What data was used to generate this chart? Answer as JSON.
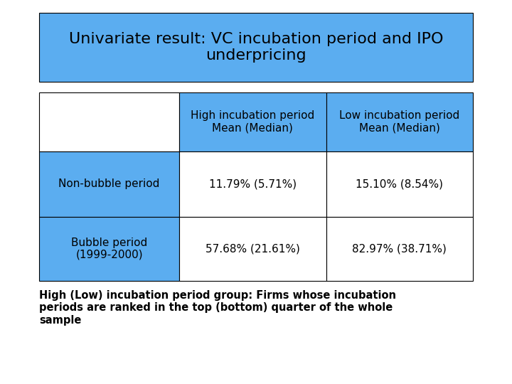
{
  "title": "Univariate result: VC incubation period and IPO\nunderpricing",
  "title_bg_color": "#5badf0",
  "title_fontsize": 16,
  "title_text_color": "#000000",
  "col_headers": [
    "High incubation period\nMean (Median)",
    "Low incubation period\nMean (Median)"
  ],
  "col_header_bg": "#5badf0",
  "row_headers": [
    "Non-bubble period",
    "Bubble period\n(1999-2000)"
  ],
  "row_header_bg": "#5badf0",
  "data": [
    [
      "11.79% (5.71%)",
      "15.10% (8.54%)"
    ],
    [
      "57.68% (21.61%)",
      "82.97% (38.71%)"
    ]
  ],
  "data_bg": "#ffffff",
  "border_color": "#000000",
  "footnote": "High (Low) incubation period group: Firms whose incubation\nperiods are ranked in the top (bottom) quarter of the whole\nsample",
  "footnote_fontsize": 10.5,
  "bg_color": "#ffffff"
}
